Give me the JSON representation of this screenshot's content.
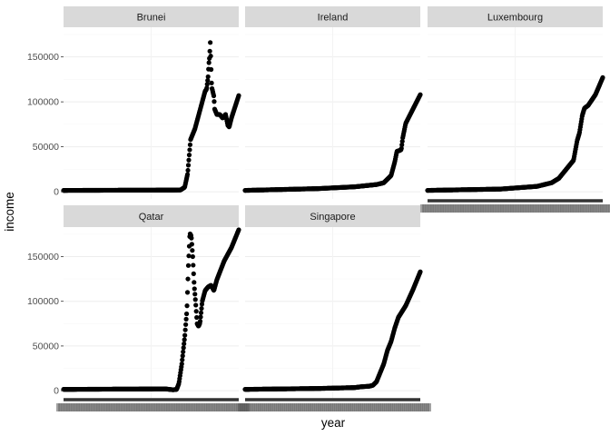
{
  "chart_data": {
    "type": "scatter",
    "xlabel": "year",
    "ylabel": "income",
    "facets": [
      "Brunei",
      "Ireland",
      "Luxembourg",
      "Qatar",
      "Singapore"
    ],
    "y_ticks": [
      0,
      50000,
      100000,
      150000
    ],
    "y_tick_labels": [
      "0",
      "50000",
      "100000",
      "150000"
    ],
    "ylim": [
      -8000,
      183000
    ],
    "xlim": [
      1800,
      2040
    ],
    "grid": true,
    "legend": "none",
    "x_tick_labels_note": "x-axis tick labels overplotted and illegible",
    "series": [
      {
        "name": "Brunei",
        "anchors": [
          [
            1800,
            1500
          ],
          [
            1960,
            1900
          ],
          [
            1966,
            5000
          ],
          [
            1970,
            20000
          ],
          [
            1974,
            58000
          ],
          [
            1980,
            70000
          ],
          [
            1985,
            85000
          ],
          [
            1990,
            100000
          ],
          [
            1994,
            112000
          ],
          [
            1996,
            114000
          ],
          [
            1998,
            128000
          ],
          [
            1999,
            142000
          ],
          [
            2000,
            150000
          ],
          [
            2001,
            166000
          ],
          [
            2003,
            116000
          ],
          [
            2004,
            113000
          ],
          [
            2006,
            106000
          ],
          [
            2007,
            92000
          ],
          [
            2010,
            86000
          ],
          [
            2014,
            86000
          ],
          [
            2018,
            82000
          ],
          [
            2022,
            86000
          ],
          [
            2025,
            74000
          ],
          [
            2027,
            72000
          ],
          [
            2030,
            82000
          ],
          [
            2040,
            107000
          ]
        ]
      },
      {
        "name": "Ireland",
        "anchors": [
          [
            1800,
            1500
          ],
          [
            1900,
            3500
          ],
          [
            1950,
            5500
          ],
          [
            1980,
            8000
          ],
          [
            1990,
            10000
          ],
          [
            2000,
            18000
          ],
          [
            2005,
            33000
          ],
          [
            2008,
            45000
          ],
          [
            2012,
            46000
          ],
          [
            2014,
            47000
          ],
          [
            2016,
            60000
          ],
          [
            2020,
            76000
          ],
          [
            2030,
            92000
          ],
          [
            2040,
            108000
          ]
        ]
      },
      {
        "name": "Luxembourg",
        "anchors": [
          [
            1800,
            1500
          ],
          [
            1900,
            3000
          ],
          [
            1950,
            6000
          ],
          [
            1970,
            10000
          ],
          [
            1980,
            15000
          ],
          [
            1990,
            25000
          ],
          [
            2000,
            35000
          ],
          [
            2005,
            57000
          ],
          [
            2008,
            65000
          ],
          [
            2012,
            85000
          ],
          [
            2015,
            93000
          ],
          [
            2020,
            96000
          ],
          [
            2030,
            108000
          ],
          [
            2040,
            127000
          ]
        ]
      },
      {
        "name": "Qatar",
        "anchors": [
          [
            1800,
            1500
          ],
          [
            1940,
            2000
          ],
          [
            1950,
            1000
          ],
          [
            1955,
            1500
          ],
          [
            1958,
            8000
          ],
          [
            1962,
            30000
          ],
          [
            1966,
            60000
          ],
          [
            1969,
            90000
          ],
          [
            1971,
            140000
          ],
          [
            1973,
            176000
          ],
          [
            1975,
            173000
          ],
          [
            1977,
            150000
          ],
          [
            1979,
            118000
          ],
          [
            1981,
            98000
          ],
          [
            1983,
            75000
          ],
          [
            1985,
            72000
          ],
          [
            1987,
            76000
          ],
          [
            1990,
            100000
          ],
          [
            1994,
            112000
          ],
          [
            1998,
            116000
          ],
          [
            2002,
            118000
          ],
          [
            2006,
            112000
          ],
          [
            2010,
            124000
          ],
          [
            2020,
            145000
          ],
          [
            2030,
            160000
          ],
          [
            2040,
            180000
          ]
        ]
      },
      {
        "name": "Singapore",
        "anchors": [
          [
            1800,
            1500
          ],
          [
            1900,
            2500
          ],
          [
            1950,
            3500
          ],
          [
            1960,
            4500
          ],
          [
            1970,
            5000
          ],
          [
            1975,
            6000
          ],
          [
            1980,
            10000
          ],
          [
            1985,
            20000
          ],
          [
            1990,
            30000
          ],
          [
            1995,
            45000
          ],
          [
            2000,
            55000
          ],
          [
            2005,
            70000
          ],
          [
            2010,
            82000
          ],
          [
            2020,
            95000
          ],
          [
            2030,
            113000
          ],
          [
            2040,
            133000
          ]
        ]
      }
    ]
  }
}
